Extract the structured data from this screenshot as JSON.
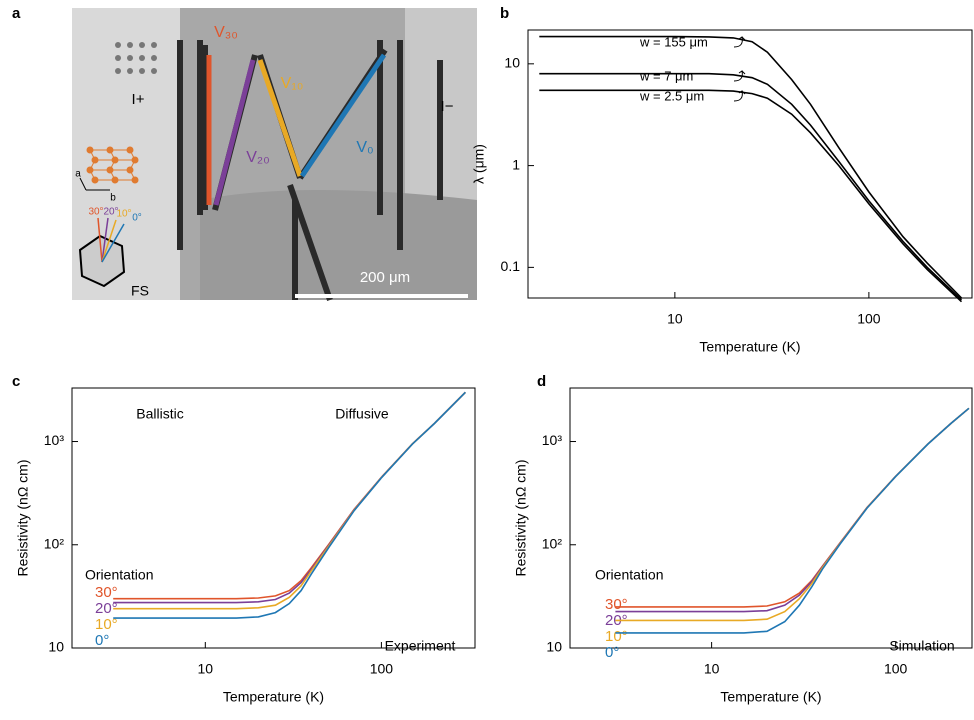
{
  "image_panel": {
    "panel": "a",
    "labels": [
      "V₃₀",
      "V₁₀",
      "V₂₀",
      "V₀",
      "I+",
      "I−",
      "a",
      "b",
      "30°",
      "20°",
      "10°",
      "0°",
      "FS",
      "200 μm"
    ]
  },
  "chart_data": [
    {
      "type": "line",
      "panel": "b",
      "xlabel": "Temperature (K)",
      "ylabel": "λ (μm)",
      "xscale": "log",
      "yscale": "log",
      "xlim": [
        1.75,
        340
      ],
      "ylim": [
        0.05,
        21.5
      ],
      "xticks": [
        10,
        100
      ],
      "yticks": [
        0.1,
        1,
        10
      ],
      "x": [
        2,
        3,
        5,
        7,
        10,
        15,
        20,
        25,
        30,
        40,
        50,
        70,
        100,
        150,
        200,
        300
      ],
      "series": [
        {
          "name": "w = 155 μm",
          "color": "#000000",
          "values": [
            18.5,
            18.5,
            18.5,
            18.5,
            18.5,
            18.4,
            18.0,
            16.5,
            13,
            7,
            4,
            1.5,
            0.55,
            0.2,
            0.11,
            0.05
          ]
        },
        {
          "name": "w = 7 μm",
          "color": "#000000",
          "values": [
            8,
            8,
            8,
            8,
            8,
            8,
            7.8,
            7.3,
            6.3,
            4,
            2.5,
            1.1,
            0.45,
            0.18,
            0.1,
            0.048
          ]
        },
        {
          "name": "w = 2.5 μm",
          "color": "#000000",
          "values": [
            5.5,
            5.5,
            5.5,
            5.5,
            5.5,
            5.5,
            5.4,
            5.1,
            4.6,
            3.2,
            2.1,
            1.0,
            0.42,
            0.17,
            0.095,
            0.046
          ]
        }
      ]
    },
    {
      "type": "line",
      "panel": "c",
      "xlabel": "Temperature (K)",
      "ylabel": "Resistivity (nΩ cm)",
      "xscale": "log",
      "yscale": "log",
      "xlim": [
        1.75,
        340
      ],
      "ylim": [
        10,
        3300
      ],
      "xticks": [
        10,
        100
      ],
      "yticks": [
        10,
        {
          "value": 100,
          "label": "10²"
        },
        {
          "value": 1000,
          "label": "10³"
        }
      ],
      "annotations": [
        "Ballistic",
        "Diffusive",
        "Experiment"
      ],
      "legend_title": "Orientation",
      "x": [
        3,
        5,
        7,
        10,
        15,
        20,
        25,
        30,
        35,
        40,
        50,
        70,
        100,
        150,
        200,
        300
      ],
      "series": [
        {
          "name": "30°",
          "color": "#e0552b",
          "values": [
            30,
            30,
            30,
            30,
            30,
            30.5,
            32,
            36,
            45,
            60,
            100,
            220,
            450,
            950,
            1500,
            3000
          ]
        },
        {
          "name": "20°",
          "color": "#7b3f98",
          "values": [
            27.5,
            27.5,
            27.5,
            27.5,
            27.5,
            28,
            29.5,
            34,
            43,
            58,
            98,
            218,
            448,
            948,
            1498,
            2998
          ]
        },
        {
          "name": "10°",
          "color": "#e8a925",
          "values": [
            24,
            24,
            24,
            24,
            24,
            24.5,
            26,
            31,
            40,
            56,
            96,
            216,
            447,
            947,
            1497,
            2997
          ]
        },
        {
          "name": "0°",
          "color": "#1f77b4",
          "values": [
            19.5,
            19.5,
            19.5,
            19.5,
            19.5,
            20,
            22,
            27,
            36,
            52,
            93,
            214,
            445,
            945,
            1495,
            2995
          ]
        }
      ]
    },
    {
      "type": "line",
      "panel": "d",
      "xlabel": "Temperature (K)",
      "ylabel": "Resistivity (nΩ cm)",
      "xscale": "log",
      "yscale": "log",
      "xlim": [
        1.7,
        260
      ],
      "ylim": [
        10,
        3300
      ],
      "xticks": [
        10,
        100
      ],
      "yticks": [
        10,
        {
          "value": 100,
          "label": "10²"
        },
        {
          "value": 1000,
          "label": "10³"
        }
      ],
      "annotations": [
        "Simulation"
      ],
      "legend_title": "Orientation",
      "x": [
        3,
        5,
        7,
        10,
        15,
        20,
        25,
        30,
        35,
        40,
        50,
        70,
        100,
        150,
        200,
        250
      ],
      "series": [
        {
          "name": "30°",
          "color": "#e0552b",
          "values": [
            25,
            25,
            25,
            25,
            25,
            25.5,
            28,
            34,
            45,
            62,
            105,
            230,
            460,
            950,
            1500,
            2100
          ]
        },
        {
          "name": "20°",
          "color": "#7b3f98",
          "values": [
            22.5,
            22.5,
            22.5,
            22.5,
            22.5,
            23,
            26,
            32.5,
            44,
            61,
            104,
            229,
            459,
            949,
            1499,
            2099
          ]
        },
        {
          "name": "10°",
          "color": "#e8a925",
          "values": [
            18.5,
            18.5,
            18.5,
            18.5,
            18.5,
            19,
            22.5,
            30,
            42,
            60,
            103,
            228,
            458,
            948,
            1498,
            2098
          ]
        },
        {
          "name": "0°",
          "color": "#1f77b4",
          "values": [
            14,
            14,
            14,
            14,
            14,
            14.5,
            18,
            26,
            39,
            58,
            102,
            227,
            457,
            947,
            1497,
            2097
          ]
        }
      ]
    }
  ]
}
